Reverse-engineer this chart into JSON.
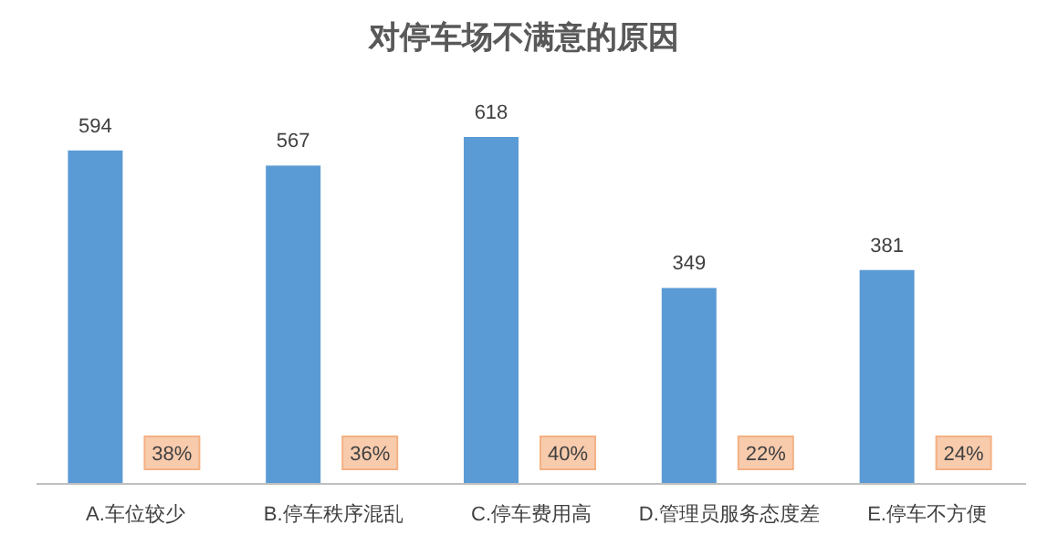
{
  "chart_data": {
    "type": "bar",
    "title": "对停车场不满意的原因",
    "categories": [
      "A.车位较少",
      "B.停车秩序混乱",
      "C.停车费用高",
      "D.管理员服务态度差",
      "E.停车不方便"
    ],
    "values": [
      594,
      567,
      618,
      349,
      381
    ],
    "color": "#5b9bd5",
    "data_labels": true,
    "annotations": [
      "38%",
      "36%",
      "40%",
      "22%",
      "24%"
    ]
  }
}
